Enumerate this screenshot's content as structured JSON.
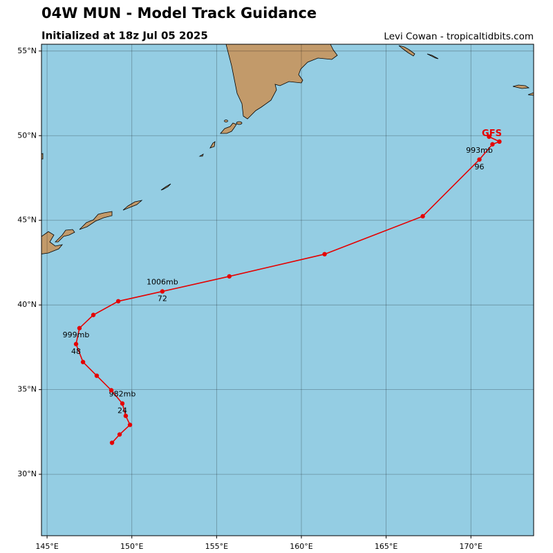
{
  "chart_data": {
    "type": "line",
    "title": "04W MUN - Model Track Guidance",
    "subtitle": "Initialized at 18z Jul 05 2025",
    "credit": "Levi Cowan - tropicaltidbits.com",
    "xlim": [
      144.67,
      173.7
    ],
    "ylim": [
      26.37,
      55.4
    ],
    "xticks": [
      {
        "value": 145,
        "label": "145°E"
      },
      {
        "value": 150,
        "label": "150°E"
      },
      {
        "value": 155,
        "label": "155°E"
      },
      {
        "value": 160,
        "label": "160°E"
      },
      {
        "value": 165,
        "label": "165°E"
      },
      {
        "value": 170,
        "label": "170°E"
      }
    ],
    "yticks": [
      {
        "value": 30,
        "label": "30°N"
      },
      {
        "value": 35,
        "label": "35°N"
      },
      {
        "value": 40,
        "label": "40°N"
      },
      {
        "value": 45,
        "label": "45°N"
      },
      {
        "value": 50,
        "label": "50°N"
      },
      {
        "value": 55,
        "label": "55°N"
      }
    ],
    "grid": true,
    "series": [
      {
        "name": "GFS",
        "color": "#e50000",
        "x": [
          148.83,
          149.28,
          149.89,
          149.64,
          149.44,
          148.79,
          147.93,
          147.12,
          146.71,
          146.91,
          147.73,
          149.2,
          151.8,
          155.75,
          161.37,
          167.16,
          170.5,
          171.27,
          171.68,
          171.07
        ],
        "values": [
          31.86,
          32.35,
          32.92,
          33.45,
          34.18,
          34.96,
          35.82,
          36.63,
          37.69,
          38.63,
          39.41,
          40.22,
          40.8,
          41.69,
          43.0,
          45.24,
          48.59,
          49.49,
          49.65,
          49.94
        ],
        "pressure_labels": [
          null,
          null,
          null,
          null,
          "982mb",
          null,
          null,
          null,
          "999mb",
          null,
          null,
          null,
          "1006mb",
          null,
          null,
          null,
          "993mb",
          null,
          null,
          null
        ],
        "hour_labels": [
          null,
          null,
          null,
          null,
          "24",
          null,
          null,
          null,
          "48",
          null,
          null,
          null,
          "72",
          null,
          null,
          null,
          "96",
          null,
          null,
          null
        ]
      }
    ]
  }
}
